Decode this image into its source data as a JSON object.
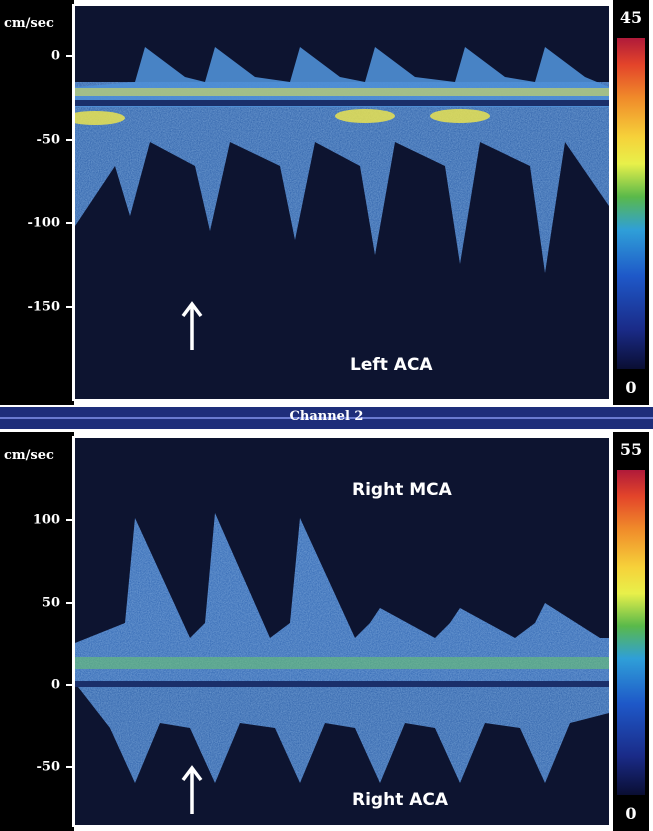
{
  "top_panel": {
    "unit_label": "cm/sec",
    "ticks": [
      {
        "value": 0,
        "label": "0"
      },
      {
        "value": -50,
        "label": "-50"
      },
      {
        "value": -100,
        "label": "-100"
      },
      {
        "value": -150,
        "label": "-150"
      }
    ],
    "vmax": 30,
    "vmin": -205,
    "vessel_label": "Left ACA",
    "colorbar_max": "45",
    "colorbar_min": "0"
  },
  "channel_bar": {
    "label": "Channel 2"
  },
  "bottom_panel": {
    "unit_label": "cm/sec",
    "ticks": [
      {
        "value": 100,
        "label": "100"
      },
      {
        "value": 50,
        "label": "50"
      },
      {
        "value": 0,
        "label": "0"
      },
      {
        "value": -50,
        "label": "-50"
      }
    ],
    "vmax": 150,
    "vmin": -85,
    "vessel_label_top": "Right MCA",
    "vessel_label_bottom": "Right ACA",
    "colorbar_max": "55",
    "colorbar_min": "0"
  },
  "colors": {
    "background": "#0d1430",
    "spectrum_fill": "#3f78c6",
    "spectrum_bright": "#7fb8ea",
    "band_yellow": "#e8e84a",
    "band_green": "#6cc86a",
    "baseline": "#1a2f6a",
    "channel_bar": "#1e2e7a"
  },
  "icons": [
    "up-arrow-icon"
  ]
}
